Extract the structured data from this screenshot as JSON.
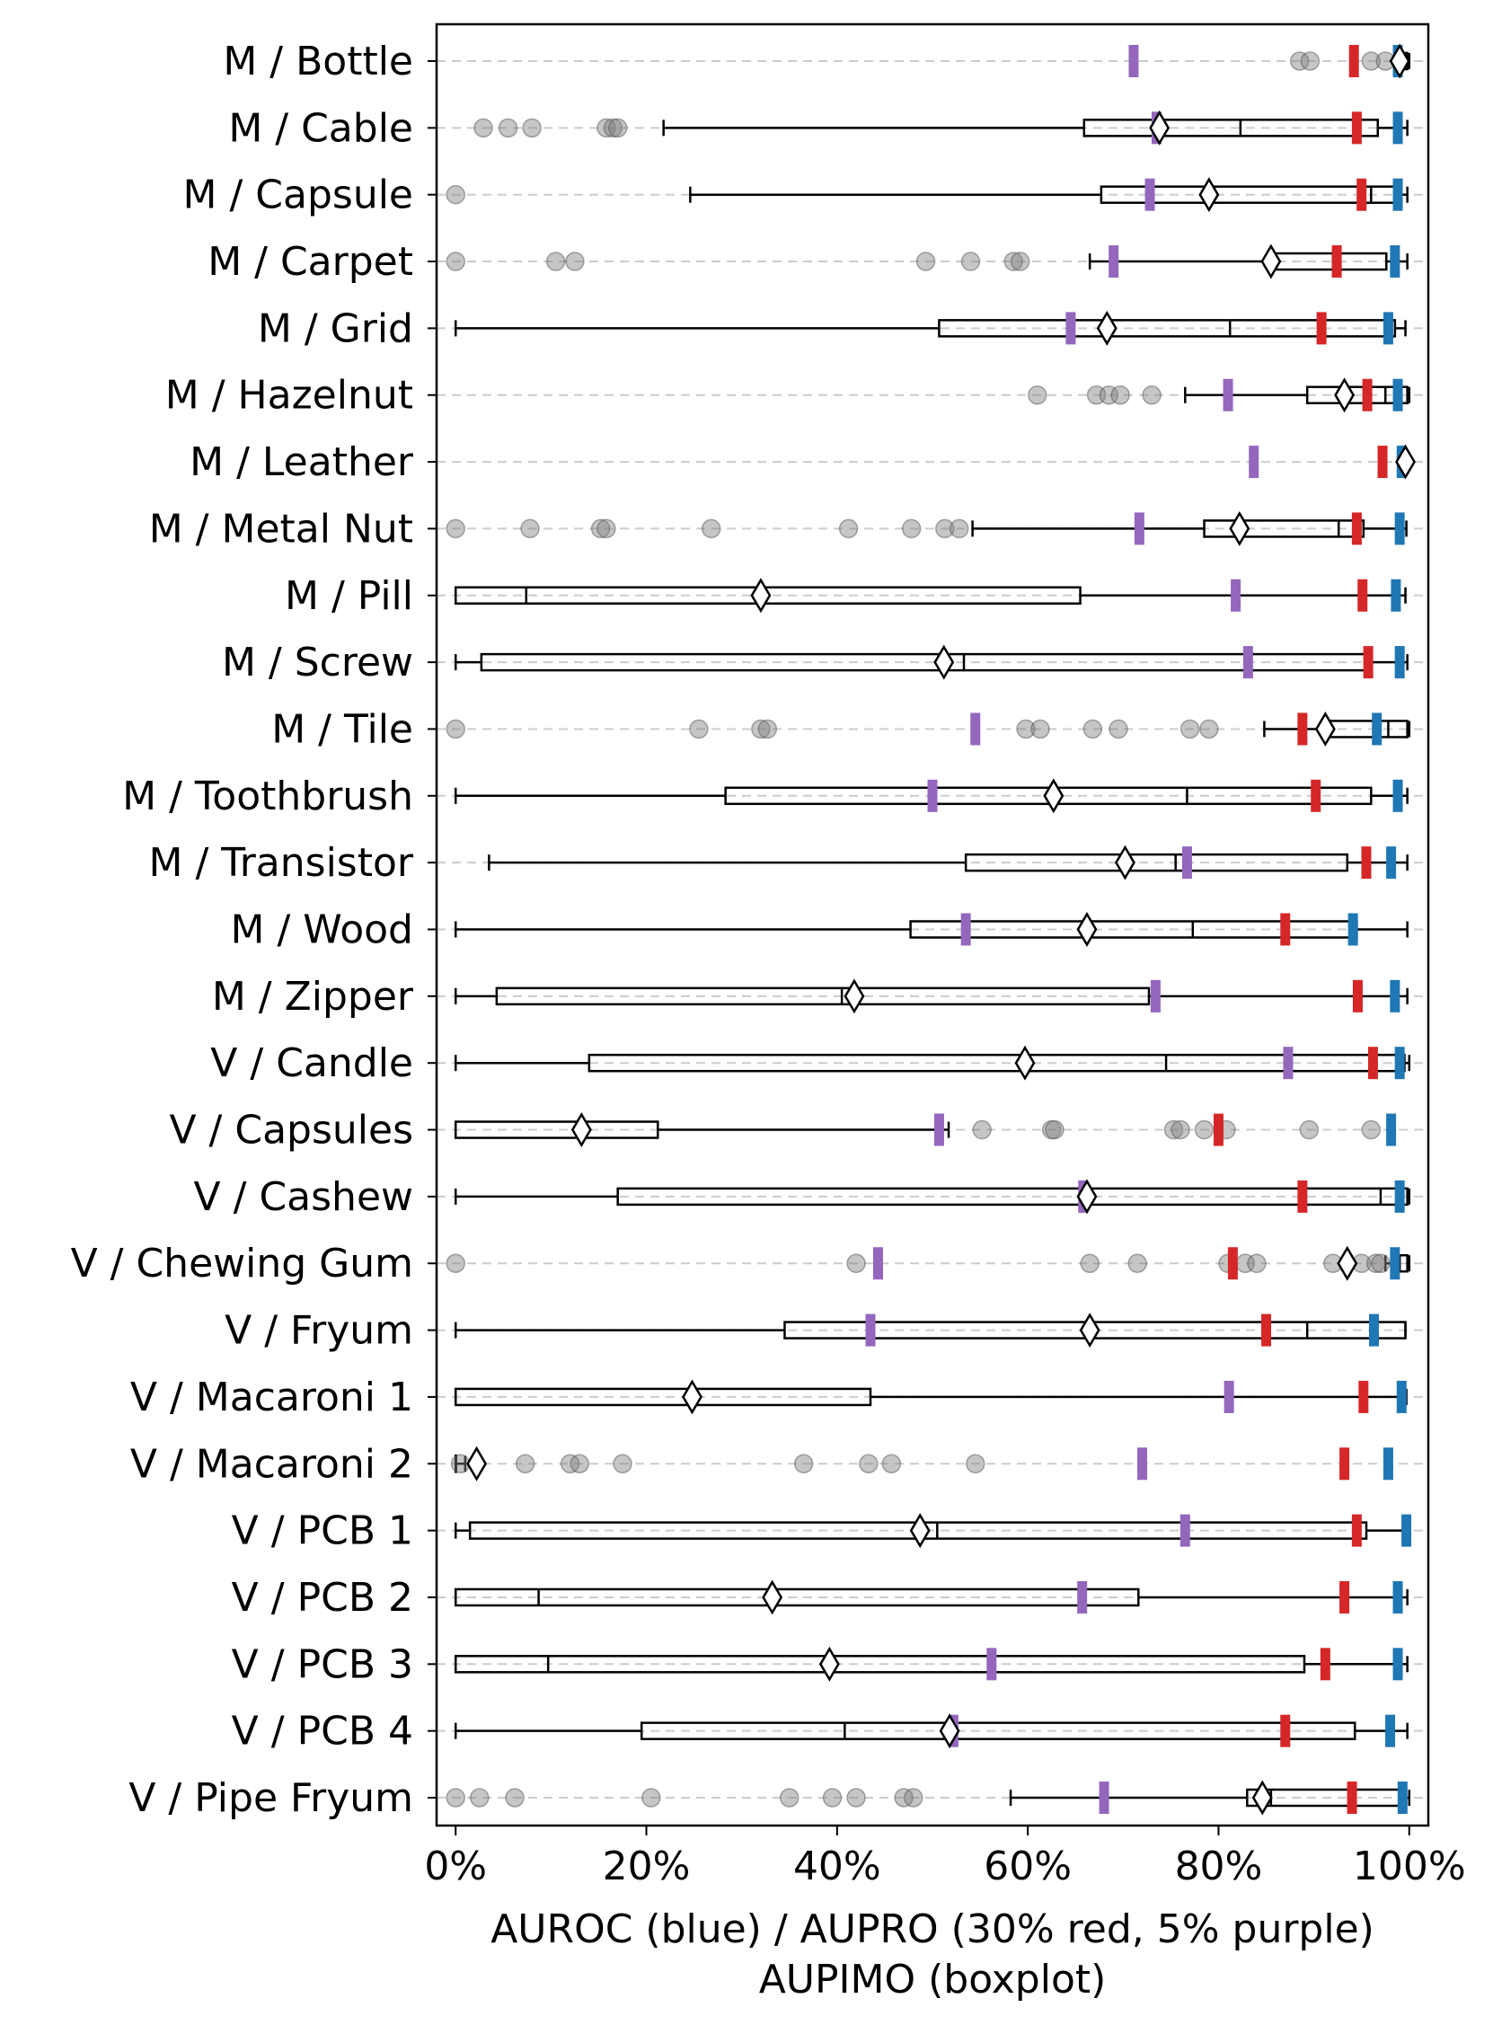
{
  "chart_data": {
    "type": "boxplot",
    "orientation": "horizontal",
    "xlabel_line1": "AUROC (blue) / AUPRO (30% red, 5% purple)",
    "xlabel_line2": "AUPIMO (boxplot)",
    "xlim": [
      -0.02,
      1.02
    ],
    "xticks": [
      0,
      0.2,
      0.4,
      0.6,
      0.8,
      1.0
    ],
    "xtick_labels": [
      "0%",
      "20%",
      "40%",
      "60%",
      "80%",
      "100%"
    ],
    "legend": {
      "auroc": "blue",
      "aupro_30": "red",
      "aupro_5": "purple",
      "mean": "white diamond"
    },
    "colors": {
      "auroc": "#1f77b4",
      "aupro_30": "#d62728",
      "aupro_5": "#9467bd",
      "box": "#000000",
      "grid": "#cccccc",
      "outlier": "#808080"
    },
    "categories": [
      {
        "label": "M / Bottle",
        "auroc": 0.988,
        "aupro30": 0.942,
        "aupro5": 0.711,
        "mean": 0.99,
        "box": [
          0.987,
          0.99,
          0.995,
          0.998,
          1.0
        ],
        "outliers": [
          0.885,
          0.896,
          0.96,
          0.975
        ]
      },
      {
        "label": "M / Cable",
        "auroc": 0.988,
        "aupro30": 0.945,
        "aupro5": 0.735,
        "mean": 0.738,
        "box": [
          0.218,
          0.659,
          0.823,
          0.967,
          0.998
        ],
        "outliers": [
          0.029,
          0.055,
          0.08,
          0.158,
          0.165,
          0.17
        ]
      },
      {
        "label": "M / Capsule",
        "auroc": 0.988,
        "aupro30": 0.95,
        "aupro5": 0.728,
        "mean": 0.79,
        "box": [
          0.246,
          0.677,
          0.96,
          0.99,
          0.998
        ],
        "outliers": [
          0.0
        ]
      },
      {
        "label": "M / Carpet",
        "auroc": 0.985,
        "aupro30": 0.924,
        "aupro5": 0.69,
        "mean": 0.855,
        "box": [
          0.665,
          0.855,
          0.92,
          0.976,
          0.998
        ],
        "outliers": [
          0.0,
          0.105,
          0.125,
          0.493,
          0.54,
          0.585,
          0.592
        ]
      },
      {
        "label": "M / Grid",
        "auroc": 0.978,
        "aupro30": 0.908,
        "aupro5": 0.645,
        "mean": 0.683,
        "box": [
          0.0,
          0.507,
          0.812,
          0.985,
          0.996
        ],
        "outliers": []
      },
      {
        "label": "M / Hazelnut",
        "auroc": 0.988,
        "aupro30": 0.956,
        "aupro5": 0.81,
        "mean": 0.932,
        "box": [
          0.765,
          0.893,
          0.975,
          0.998,
          1.0
        ],
        "outliers": [
          0.61,
          0.672,
          0.685,
          0.697,
          0.73
        ]
      },
      {
        "label": "M / Leather",
        "auroc": 0.992,
        "aupro30": 0.972,
        "aupro5": 0.837,
        "mean": 0.996,
        "box": [
          0.99,
          0.994,
          0.996,
          0.999,
          1.0
        ],
        "outliers": []
      },
      {
        "label": "M / Metal Nut",
        "auroc": 0.99,
        "aupro30": 0.945,
        "aupro5": 0.717,
        "mean": 0.822,
        "box": [
          0.542,
          0.785,
          0.926,
          0.952,
          0.997
        ],
        "outliers": [
          0.0,
          0.078,
          0.152,
          0.158,
          0.268,
          0.412,
          0.478,
          0.513,
          0.528
        ]
      },
      {
        "label": "M / Pill",
        "auroc": 0.986,
        "aupro30": 0.951,
        "aupro5": 0.818,
        "mean": 0.32,
        "box": [
          0.0,
          0.0,
          0.074,
          0.655,
          0.996
        ],
        "outliers": []
      },
      {
        "label": "M / Screw",
        "auroc": 0.99,
        "aupro30": 0.957,
        "aupro5": 0.831,
        "mean": 0.512,
        "box": [
          0.0,
          0.027,
          0.533,
          0.957,
          0.998
        ],
        "outliers": []
      },
      {
        "label": "M / Tile",
        "auroc": 0.966,
        "aupro30": 0.888,
        "aupro5": 0.545,
        "mean": 0.912,
        "box": [
          0.848,
          0.912,
          0.978,
          0.998,
          1.0
        ],
        "outliers": [
          0.0,
          0.255,
          0.32,
          0.327,
          0.598,
          0.613,
          0.668,
          0.695,
          0.77,
          0.79
        ]
      },
      {
        "label": "M / Toothbrush",
        "auroc": 0.988,
        "aupro30": 0.902,
        "aupro5": 0.5,
        "mean": 0.627,
        "box": [
          0.0,
          0.283,
          0.767,
          0.96,
          0.998
        ],
        "outliers": []
      },
      {
        "label": "M / Transistor",
        "auroc": 0.981,
        "aupro30": 0.955,
        "aupro5": 0.767,
        "mean": 0.702,
        "box": [
          0.035,
          0.535,
          0.755,
          0.935,
          0.998
        ],
        "outliers": []
      },
      {
        "label": "M / Wood",
        "auroc": 0.941,
        "aupro30": 0.87,
        "aupro5": 0.535,
        "mean": 0.662,
        "box": [
          0.0,
          0.477,
          0.773,
          0.945,
          0.998
        ],
        "outliers": []
      },
      {
        "label": "M / Zipper",
        "auroc": 0.985,
        "aupro30": 0.946,
        "aupro5": 0.734,
        "mean": 0.418,
        "box": [
          0.0,
          0.043,
          0.405,
          0.727,
          0.998
        ],
        "outliers": []
      },
      {
        "label": "V / Candle",
        "auroc": 0.99,
        "aupro30": 0.962,
        "aupro5": 0.873,
        "mean": 0.597,
        "box": [
          0.0,
          0.14,
          0.745,
          0.995,
          1.0
        ],
        "outliers": []
      },
      {
        "label": "V / Capsules",
        "auroc": 0.981,
        "aupro30": 0.8,
        "aupro5": 0.507,
        "mean": 0.132,
        "box": [
          0.0,
          0.0,
          0.0,
          0.212,
          0.517
        ],
        "outliers": [
          0.552,
          0.625,
          0.628,
          0.753,
          0.76,
          0.785,
          0.808,
          0.895,
          0.96
        ]
      },
      {
        "label": "V / Cashew",
        "auroc": 0.99,
        "aupro30": 0.888,
        "aupro5": 0.658,
        "mean": 0.662,
        "box": [
          0.0,
          0.17,
          0.97,
          0.998,
          1.0
        ],
        "outliers": []
      },
      {
        "label": "V / Chewing Gum",
        "auroc": 0.985,
        "aupro30": 0.815,
        "aupro5": 0.443,
        "mean": 0.935,
        "box": [
          0.975,
          0.985,
          0.99,
          0.998,
          1.0
        ],
        "outliers": [
          0.0,
          0.42,
          0.665,
          0.715,
          0.81,
          0.828,
          0.84,
          0.92,
          0.95,
          0.965,
          0.97
        ]
      },
      {
        "label": "V / Fryum",
        "auroc": 0.963,
        "aupro30": 0.85,
        "aupro5": 0.435,
        "mean": 0.665,
        "box": [
          0.0,
          0.345,
          0.893,
          0.996,
          0.996
        ],
        "outliers": []
      },
      {
        "label": "V / Macaroni 1",
        "auroc": 0.992,
        "aupro30": 0.952,
        "aupro5": 0.811,
        "mean": 0.248,
        "box": [
          0.0,
          0.0,
          0.0,
          0.435,
          0.997
        ],
        "outliers": []
      },
      {
        "label": "V / Macaroni 2",
        "auroc": 0.978,
        "aupro30": 0.932,
        "aupro5": 0.72,
        "mean": 0.022,
        "box": [
          0.0,
          0.0,
          0.0,
          0.0,
          0.01
        ],
        "outliers": [
          0.005,
          0.073,
          0.12,
          0.13,
          0.175,
          0.365,
          0.433,
          0.457,
          0.545
        ]
      },
      {
        "label": "V / PCB 1",
        "auroc": 0.997,
        "aupro30": 0.945,
        "aupro5": 0.765,
        "mean": 0.487,
        "box": [
          0.0,
          0.015,
          0.505,
          0.955,
          0.998
        ],
        "outliers": []
      },
      {
        "label": "V / PCB 2",
        "auroc": 0.988,
        "aupro30": 0.932,
        "aupro5": 0.657,
        "mean": 0.332,
        "box": [
          0.0,
          0.0,
          0.087,
          0.716,
          0.998
        ],
        "outliers": []
      },
      {
        "label": "V / PCB 3",
        "auroc": 0.988,
        "aupro30": 0.912,
        "aupro5": 0.562,
        "mean": 0.392,
        "box": [
          0.0,
          0.0,
          0.097,
          0.89,
          0.998
        ],
        "outliers": []
      },
      {
        "label": "V / PCB 4",
        "auroc": 0.98,
        "aupro30": 0.87,
        "aupro5": 0.522,
        "mean": 0.518,
        "box": [
          0.0,
          0.195,
          0.408,
          0.943,
          0.998
        ],
        "outliers": []
      },
      {
        "label": "V / Pipe Fryum",
        "auroc": 0.993,
        "aupro30": 0.94,
        "aupro5": 0.68,
        "mean": 0.846,
        "box": [
          0.582,
          0.83,
          0.855,
          0.995,
          1.0
        ],
        "outliers": [
          0.0,
          0.025,
          0.062,
          0.205,
          0.35,
          0.395,
          0.42,
          0.47,
          0.48
        ]
      }
    ]
  }
}
